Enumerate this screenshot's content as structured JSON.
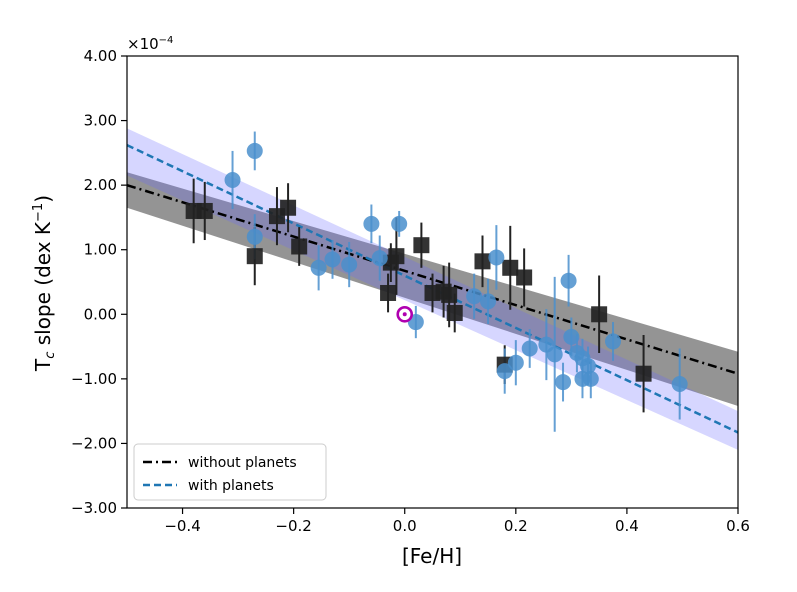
{
  "chart_data": {
    "type": "scatter",
    "xlabel": "[Fe/H]",
    "ylabel": "T",
    "ylabel_sub": "c",
    "ylabel_rest": " slope (dex K",
    "ylabel_sup": "−1",
    "ylabel_close": ")",
    "offset_text_base": "×10",
    "offset_text_exp": "−4",
    "xlim": [
      -0.5,
      0.6
    ],
    "ylim": [
      -3.0,
      4.0
    ],
    "xticks": [
      -0.4,
      -0.2,
      0.0,
      0.2,
      0.4,
      0.6
    ],
    "xtick_labels": [
      "−0.4",
      "−0.2",
      "0.0",
      "0.2",
      "0.4",
      "0.6"
    ],
    "yticks": [
      -3,
      -2,
      -1,
      0,
      1,
      2,
      3,
      4
    ],
    "ytick_labels": [
      "−3.00",
      "−2.00",
      "−1.00",
      "0.00",
      "1.00",
      "2.00",
      "3.00",
      "4.00"
    ],
    "legend_position": "lower-left",
    "legend": [
      {
        "label": "without planets",
        "color": "#000000",
        "style": "dashdot"
      },
      {
        "label": "with planets",
        "color": "#1f77b4",
        "style": "dashed"
      }
    ],
    "fits": [
      {
        "name": "without planets",
        "color": "#000000",
        "dash": "9,4,2,4",
        "x": [
          -0.5,
          0.6
        ],
        "y": [
          2.0,
          -0.92
        ],
        "band_color": "#000000",
        "band_opacity": 0.42,
        "band_lower": [
          1.65,
          -1.42
        ],
        "band_upper": [
          2.2,
          -0.58
        ]
      },
      {
        "name": "with planets",
        "color": "#1f77b4",
        "dash": "7,4",
        "x": [
          -0.5,
          0.6
        ],
        "y": [
          2.62,
          -1.83
        ],
        "band_color": "#6b6bff",
        "band_opacity": 0.28,
        "band_lower": [
          2.15,
          -2.1
        ],
        "band_upper": [
          2.88,
          -1.5
        ]
      }
    ],
    "series": [
      {
        "name": "without planets",
        "color": "#222222",
        "marker": "square",
        "points": [
          {
            "x": -0.38,
            "y": 1.6,
            "e": 0.5
          },
          {
            "x": -0.36,
            "y": 1.6,
            "e": 0.45
          },
          {
            "x": -0.27,
            "y": 0.9,
            "e": 0.45
          },
          {
            "x": -0.23,
            "y": 1.52,
            "e": 0.45
          },
          {
            "x": -0.21,
            "y": 1.65,
            "e": 0.38
          },
          {
            "x": -0.19,
            "y": 1.05,
            "e": 0.3
          },
          {
            "x": -0.03,
            "y": 0.33,
            "e": 0.3
          },
          {
            "x": -0.025,
            "y": 0.8,
            "e": 0.3
          },
          {
            "x": -0.015,
            "y": 0.9,
            "e": 0.6
          },
          {
            "x": 0.03,
            "y": 1.07,
            "e": 0.35
          },
          {
            "x": 0.05,
            "y": 0.33,
            "e": 0.3
          },
          {
            "x": 0.07,
            "y": 0.35,
            "e": 0.4
          },
          {
            "x": 0.08,
            "y": 0.3,
            "e": 0.5
          },
          {
            "x": 0.09,
            "y": 0.02,
            "e": 0.3
          },
          {
            "x": 0.14,
            "y": 0.82,
            "e": 0.4
          },
          {
            "x": 0.18,
            "y": -0.78,
            "e": 0.3
          },
          {
            "x": 0.19,
            "y": 0.72,
            "e": 0.65
          },
          {
            "x": 0.215,
            "y": 0.57,
            "e": 0.45
          },
          {
            "x": 0.35,
            "y": 0.0,
            "e": 0.6
          },
          {
            "x": 0.43,
            "y": -0.92,
            "e": 0.6
          }
        ]
      },
      {
        "name": "with planets",
        "color": "#4a8fcc",
        "marker": "circle",
        "points": [
          {
            "x": -0.31,
            "y": 2.08,
            "e": 0.45
          },
          {
            "x": -0.27,
            "y": 2.53,
            "e": 0.3
          },
          {
            "x": -0.27,
            "y": 1.2,
            "e": 0.35
          },
          {
            "x": -0.155,
            "y": 0.72,
            "e": 0.35
          },
          {
            "x": -0.13,
            "y": 0.85,
            "e": 0.3
          },
          {
            "x": -0.1,
            "y": 0.77,
            "e": 0.35
          },
          {
            "x": -0.06,
            "y": 1.4,
            "e": 0.3
          },
          {
            "x": -0.045,
            "y": 0.87,
            "e": 0.35
          },
          {
            "x": -0.01,
            "y": 1.4,
            "e": 0.2
          },
          {
            "x": 0.02,
            "y": -0.12,
            "e": 0.25
          },
          {
            "x": 0.125,
            "y": 0.28,
            "e": 0.35
          },
          {
            "x": 0.15,
            "y": 0.2,
            "e": 0.35
          },
          {
            "x": 0.165,
            "y": 0.88,
            "e": 0.5
          },
          {
            "x": 0.18,
            "y": -0.88,
            "e": 0.35
          },
          {
            "x": 0.2,
            "y": -0.75,
            "e": 0.35
          },
          {
            "x": 0.225,
            "y": -0.53,
            "e": 0.3
          },
          {
            "x": 0.255,
            "y": -0.47,
            "e": 0.55
          },
          {
            "x": 0.27,
            "y": -0.62,
            "e": 1.2
          },
          {
            "x": 0.285,
            "y": -1.05,
            "e": 0.3
          },
          {
            "x": 0.295,
            "y": 0.52,
            "e": 0.4
          },
          {
            "x": 0.3,
            "y": -0.35,
            "e": 0.3
          },
          {
            "x": 0.31,
            "y": -0.6,
            "e": 0.3
          },
          {
            "x": 0.32,
            "y": -0.68,
            "e": 0.3
          },
          {
            "x": 0.32,
            "y": -1.0,
            "e": 0.3
          },
          {
            "x": 0.33,
            "y": -0.8,
            "e": 0.3
          },
          {
            "x": 0.335,
            "y": -1.0,
            "e": 0.3
          },
          {
            "x": 0.375,
            "y": -0.42,
            "e": 0.3
          },
          {
            "x": 0.495,
            "y": -1.08,
            "e": 0.55
          }
        ]
      }
    ],
    "sun_marker": {
      "x": 0.0,
      "y": 0.0,
      "color": "#b000b0"
    }
  }
}
